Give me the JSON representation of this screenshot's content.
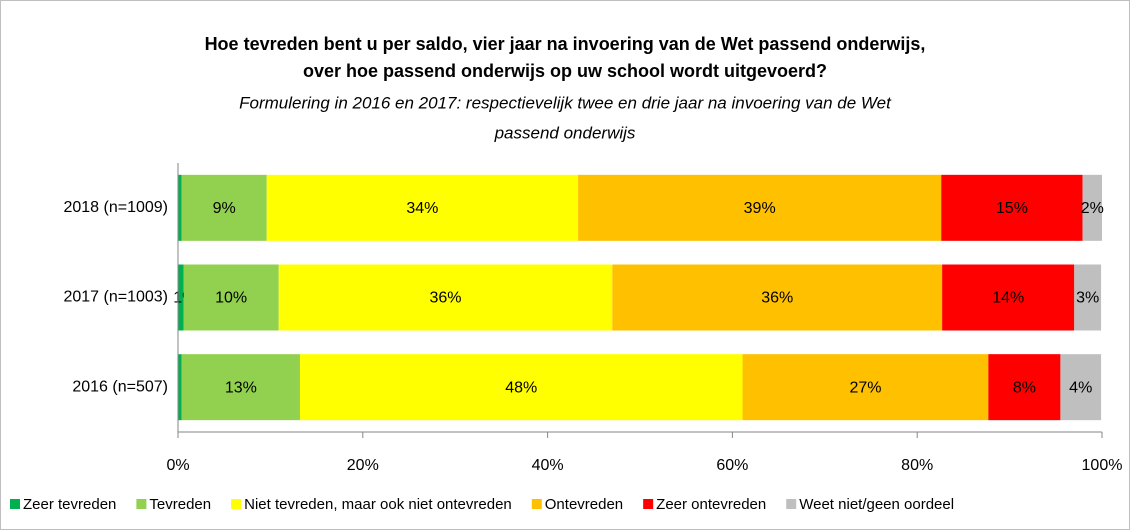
{
  "chart_data": {
    "type": "stacked_barh",
    "title": [
      "Hoe tevreden bent u per saldo, vier jaar na invoering van de Wet passend onderwijs,",
      "over hoe passend onderwijs op uw school wordt uitgevoerd?"
    ],
    "subtitle": [
      "Formulering in 2016 en 2017: respectievelijk twee en drie jaar na invoering van de Wet",
      "passend onderwijs"
    ],
    "categories": [
      "2018 (n=1009)",
      "2017 (n=1003)",
      "2016 (n=507)"
    ],
    "series": [
      {
        "name": "Zeer tevreden",
        "color": "#00b050",
        "values": [
          0.4,
          0.6,
          0.4
        ],
        "value_labels": [
          null,
          "1%",
          null
        ]
      },
      {
        "name": "Tevreden",
        "color": "#92d050",
        "values": [
          9.2,
          10.3,
          12.8
        ],
        "value_labels": [
          "9%",
          "10%",
          "13%"
        ]
      },
      {
        "name": "Niet tevreden, maar ook niet ontevreden",
        "color": "#ffff00",
        "values": [
          33.7,
          36.1,
          47.9
        ],
        "value_labels": [
          "34%",
          "36%",
          "48%"
        ]
      },
      {
        "name": "Ontevreden",
        "color": "#ffc000",
        "values": [
          39.3,
          35.7,
          26.6
        ],
        "value_labels": [
          "39%",
          "36%",
          "27%"
        ]
      },
      {
        "name": "Zeer ontevreden",
        "color": "#ff0000",
        "values": [
          15.3,
          14.3,
          7.8
        ],
        "value_labels": [
          "15%",
          "14%",
          "8%"
        ]
      },
      {
        "name": "Weet niet/geen oordeel",
        "color": "#bfbfbf",
        "values": [
          2.1,
          2.9,
          4.4
        ],
        "value_labels": [
          "2%",
          "3%",
          "4%"
        ]
      }
    ],
    "xlim": [
      0,
      100
    ],
    "xticks": [
      {
        "value": 0,
        "label": "0%"
      },
      {
        "value": 20,
        "label": "20%"
      },
      {
        "value": 40,
        "label": "40%"
      },
      {
        "value": 60,
        "label": "60%"
      },
      {
        "value": 80,
        "label": "80%"
      },
      {
        "value": 100,
        "label": "100%"
      }
    ],
    "legend": "bottom"
  }
}
